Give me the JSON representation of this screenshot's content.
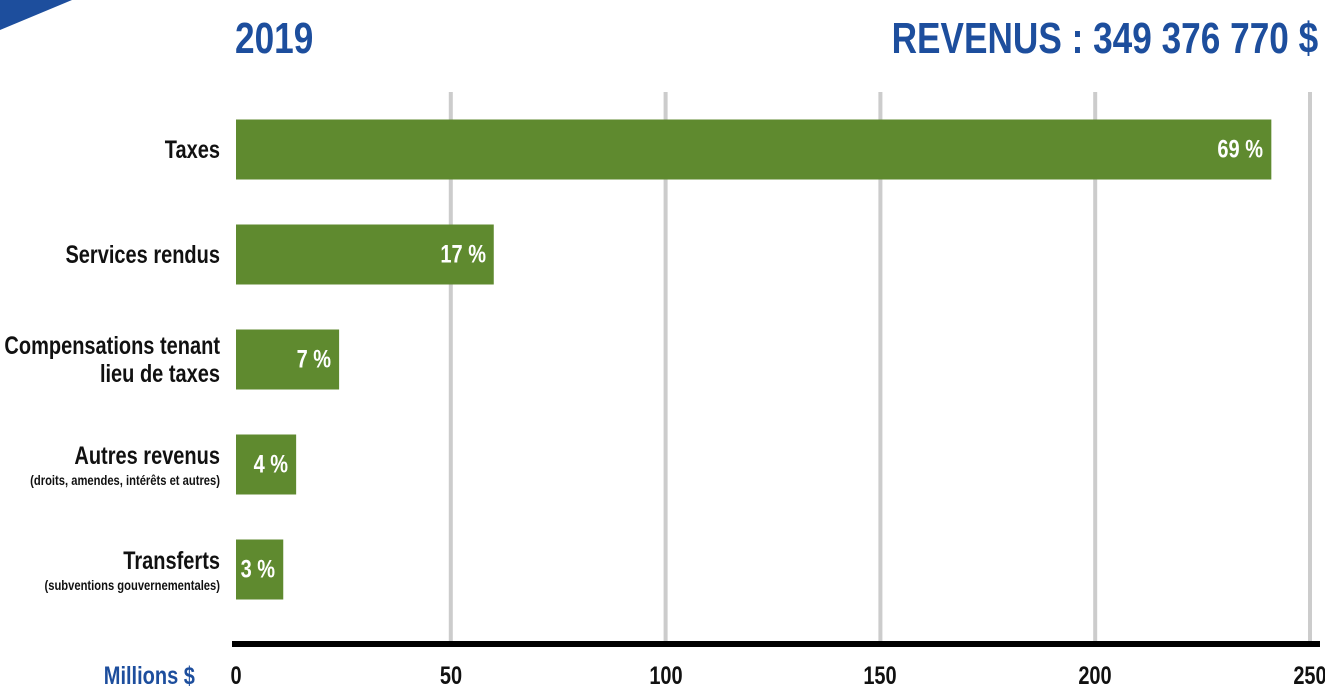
{
  "chart_data": {
    "type": "bar",
    "orientation": "horizontal",
    "title": "2019",
    "subtitle": "REVENUS : 349 376 770 $",
    "x_label": "Millions $",
    "categories": [
      "Taxes",
      "Services rendus",
      "Compensations tenant lieu de taxes",
      "Autres revenus",
      "Transferts"
    ],
    "category_notes": [
      null,
      null,
      null,
      "(droits, amendes, intérêts et autres)",
      "(subventions gouvernementales)"
    ],
    "values": [
      241,
      60,
      24,
      14,
      11
    ],
    "value_labels": [
      "69 %",
      "17 %",
      "7 %",
      "4 %",
      "3 %"
    ],
    "color": "#5f8a2f",
    "xlim": [
      0,
      250
    ],
    "xticks": [
      0,
      50,
      100,
      150,
      200,
      250
    ],
    "grid": true
  }
}
